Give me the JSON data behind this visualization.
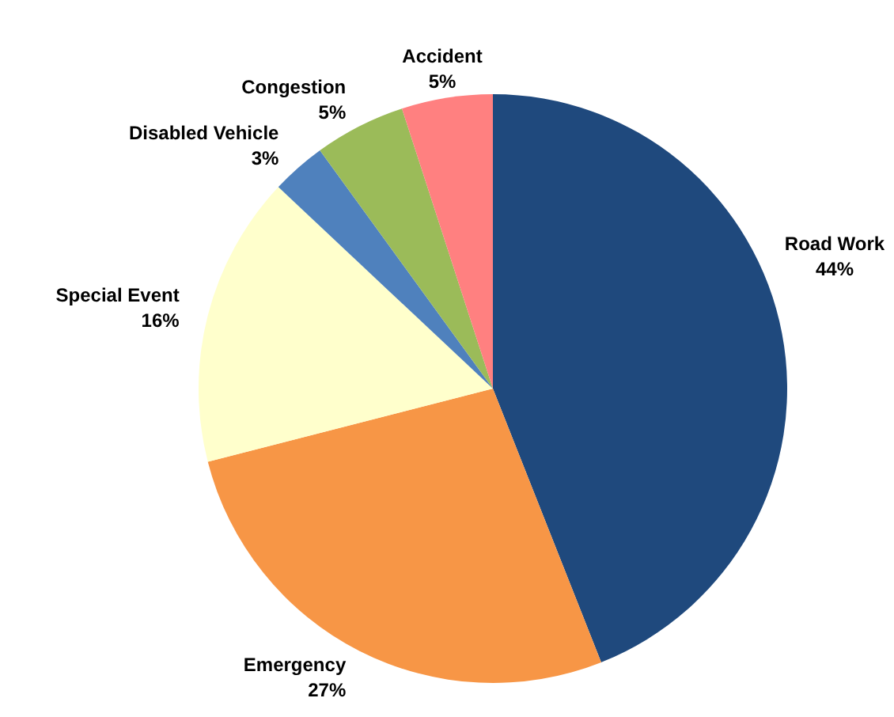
{
  "chart_data": {
    "type": "pie",
    "categories": [
      "Road Work",
      "Emergency",
      "Special Event",
      "Disabled Vehicle",
      "Congestion",
      "Accident"
    ],
    "values": [
      44,
      27,
      16,
      3,
      5,
      5
    ],
    "value_labels": [
      "44%",
      "27%",
      "16%",
      "3%",
      "5%",
      "5%"
    ],
    "colors": [
      "#1f497d",
      "#f79646",
      "#ffffcc",
      "#4f81bd",
      "#9bbb59",
      "#ff8080"
    ]
  }
}
